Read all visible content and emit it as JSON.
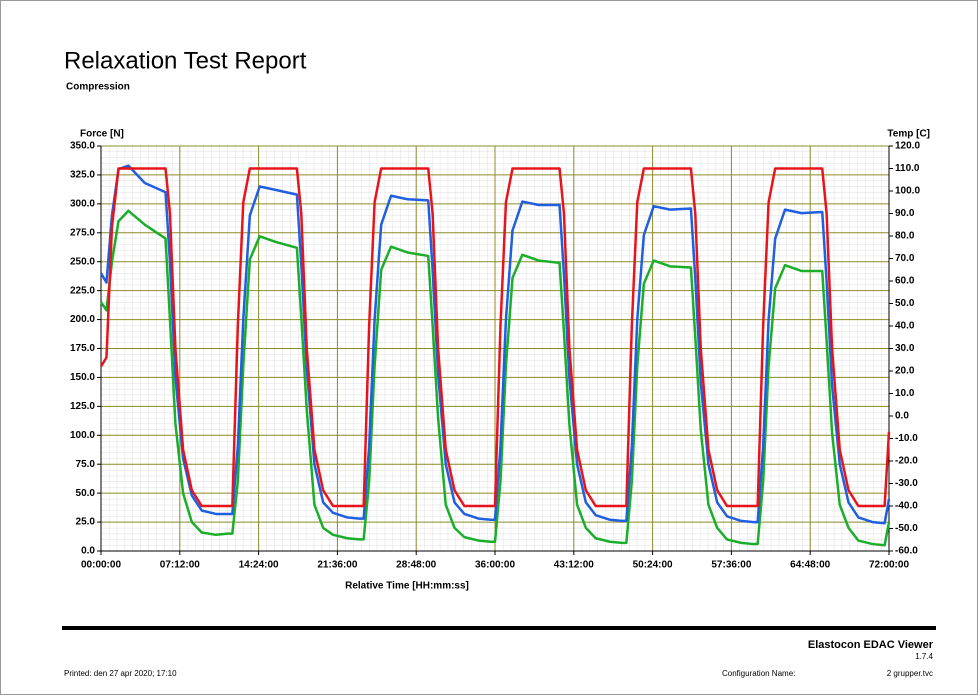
{
  "chart_data": {
    "type": "line",
    "title": "Relaxation Test Report",
    "subtitle": "Compression",
    "ylabel": "Force [N]",
    "y2label": "Temp [C]",
    "xlabel": "Relative Time [HH:mm:ss]",
    "grid": true,
    "x": [
      0,
      0.5,
      1,
      1.6,
      2.5,
      4,
      5.9,
      6.3,
      6.8,
      7.5,
      8.3,
      9.2,
      10.5,
      11.6,
      12,
      12.5,
      13,
      13.6,
      14.5,
      16,
      17.9,
      18.3,
      18.8,
      19.5,
      20.3,
      21.2,
      22.5,
      23.6,
      24,
      24.5,
      25,
      25.6,
      26.5,
      28,
      29.9,
      30.3,
      30.8,
      31.5,
      32.3,
      33.2,
      34.5,
      35.6,
      36,
      36.5,
      37,
      37.6,
      38.5,
      40,
      41.9,
      42.3,
      42.8,
      43.5,
      44.3,
      45.2,
      46.5,
      47.6,
      48,
      48.5,
      49,
      49.6,
      50.5,
      52,
      53.9,
      54.3,
      54.8,
      55.5,
      56.3,
      57.2,
      58.5,
      59.6,
      60,
      60.5,
      61,
      61.6,
      62.5,
      64,
      65.9,
      66.3,
      66.8,
      67.5,
      68.3,
      69.2,
      70.5,
      71.6,
      72
    ],
    "xlim": [
      0,
      72
    ],
    "xticks": [
      {
        "value": 0,
        "label": "00:00:00"
      },
      {
        "value": 7.2,
        "label": "07:12:00"
      },
      {
        "value": 14.4,
        "label": "14:24:00"
      },
      {
        "value": 21.6,
        "label": "21:36:00"
      },
      {
        "value": 28.8,
        "label": "28:48:00"
      },
      {
        "value": 36,
        "label": "36:00:00"
      },
      {
        "value": 43.2,
        "label": "43:12:00"
      },
      {
        "value": 50.4,
        "label": "50:24:00"
      },
      {
        "value": 57.6,
        "label": "57:36:00"
      },
      {
        "value": 64.8,
        "label": "64:48:00"
      },
      {
        "value": 72,
        "label": "72:00:00"
      }
    ],
    "ylim": [
      0,
      350
    ],
    "yticks": [
      {
        "value": 0,
        "label": "0.0"
      },
      {
        "value": 25,
        "label": "25.0"
      },
      {
        "value": 50,
        "label": "50.0"
      },
      {
        "value": 75,
        "label": "75.0"
      },
      {
        "value": 100,
        "label": "100.0"
      },
      {
        "value": 125,
        "label": "125.0"
      },
      {
        "value": 150,
        "label": "150.0"
      },
      {
        "value": 175,
        "label": "175.0"
      },
      {
        "value": 200,
        "label": "200.0"
      },
      {
        "value": 225,
        "label": "225.0"
      },
      {
        "value": 250,
        "label": "250.0"
      },
      {
        "value": 275,
        "label": "275.0"
      },
      {
        "value": 300,
        "label": "300.0"
      },
      {
        "value": 325,
        "label": "325.0"
      },
      {
        "value": 350,
        "label": "350.0"
      }
    ],
    "y2lim": [
      -60,
      120
    ],
    "y2ticks": [
      {
        "value": -60,
        "label": "-60.0"
      },
      {
        "value": -50,
        "label": "-50.0"
      },
      {
        "value": -40,
        "label": "-40.0"
      },
      {
        "value": -30,
        "label": "-30.0"
      },
      {
        "value": -20,
        "label": "-20.0"
      },
      {
        "value": -10,
        "label": "-10.0"
      },
      {
        "value": 0,
        "label": "0.0"
      },
      {
        "value": 10,
        "label": "10.0"
      },
      {
        "value": 20,
        "label": "20.0"
      },
      {
        "value": 30,
        "label": "30.0"
      },
      {
        "value": 40,
        "label": "40.0"
      },
      {
        "value": 50,
        "label": "50.0"
      },
      {
        "value": 60,
        "label": "60.0"
      },
      {
        "value": 70,
        "label": "70.0"
      },
      {
        "value": 80,
        "label": "80.0"
      },
      {
        "value": 90,
        "label": "90.0"
      },
      {
        "value": 100,
        "label": "100.0"
      },
      {
        "value": 110,
        "label": "110.0"
      },
      {
        "value": 120,
        "label": "120.0"
      }
    ],
    "series": [
      {
        "color": "#1aae2a",
        "values": [
          215,
          208,
          250,
          285,
          294,
          282,
          270,
          200,
          110,
          50,
          25,
          16,
          14,
          15,
          15,
          60,
          160,
          252,
          272,
          267,
          262,
          202,
          122,
          40,
          20,
          14,
          11,
          10,
          10,
          60,
          160,
          243,
          263,
          258,
          255,
          195,
          115,
          40,
          20,
          12,
          9,
          8,
          8,
          60,
          160,
          236,
          256,
          251,
          249,
          189,
          109,
          40,
          20,
          11,
          8,
          7,
          7,
          60,
          160,
          231,
          251,
          246,
          245,
          185,
          105,
          40,
          20,
          10,
          7,
          6,
          6,
          60,
          160,
          227,
          247,
          242,
          242,
          182,
          102,
          40,
          20,
          9,
          6,
          5,
          25
        ]
      },
      {
        "color": "#1f5fe0",
        "values": [
          240,
          232,
          290,
          330,
          333,
          318,
          310,
          250,
          150,
          80,
          48,
          35,
          32,
          32,
          32,
          90,
          200,
          290,
          315,
          312,
          308,
          248,
          158,
          75,
          42,
          33,
          29,
          28,
          28,
          90,
          200,
          282,
          307,
          304,
          303,
          243,
          153,
          75,
          42,
          32,
          28,
          27,
          27,
          90,
          200,
          277,
          302,
          299,
          299,
          239,
          149,
          75,
          42,
          31,
          27,
          26,
          26,
          90,
          200,
          273,
          298,
          295,
          296,
          236,
          146,
          75,
          42,
          30,
          26,
          25,
          25,
          90,
          200,
          270,
          295,
          292,
          293,
          233,
          143,
          75,
          42,
          29,
          25,
          24,
          45
        ]
      },
      {
        "color": "#e8141b",
        "axis": "y2",
        "values": [
          22,
          26,
          84,
          110,
          110,
          110,
          110,
          90,
          30,
          -15,
          -33,
          -40,
          -40,
          -40,
          -40,
          40,
          95,
          110,
          110,
          110,
          110,
          90,
          30,
          -15,
          -33,
          -40,
          -40,
          -40,
          -40,
          40,
          95,
          110,
          110,
          110,
          110,
          90,
          30,
          -15,
          -33,
          -40,
          -40,
          -40,
          -40,
          40,
          95,
          110,
          110,
          110,
          110,
          90,
          30,
          -15,
          -33,
          -40,
          -40,
          -40,
          -40,
          40,
          95,
          110,
          110,
          110,
          110,
          90,
          30,
          -15,
          -33,
          -40,
          -40,
          -40,
          -40,
          40,
          95,
          110,
          110,
          110,
          110,
          90,
          30,
          -15,
          -33,
          -40,
          -40,
          -40,
          -7
        ]
      }
    ]
  },
  "footer": {
    "app": "Elastocon EDAC Viewer",
    "version": "1.7.4",
    "printed": "Printed: den 27 apr 2020; 17:10",
    "config_label": "Configuration Name:",
    "config_value": "2 grupper.tvc"
  }
}
